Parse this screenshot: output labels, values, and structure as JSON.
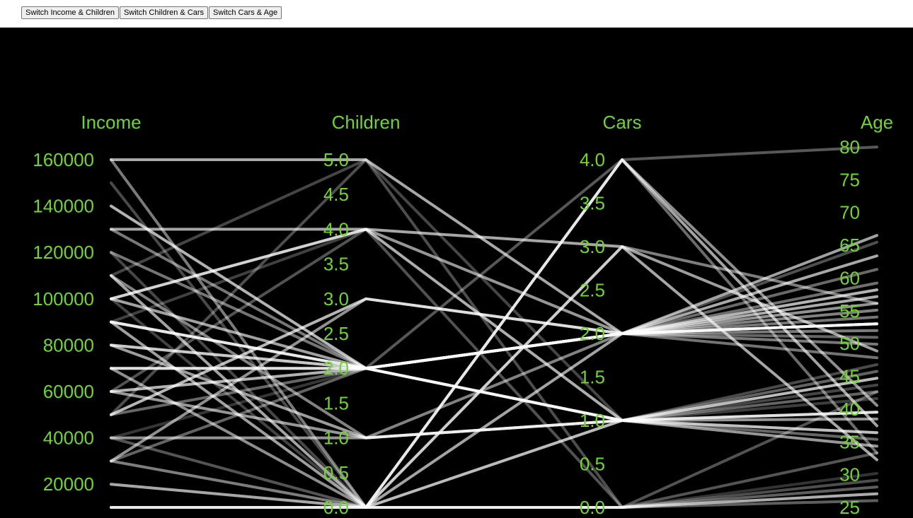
{
  "toolbar": {
    "swap_income_children": "Switch Income & Children",
    "swap_children_cars": "Switch Children & Cars",
    "swap_cars_age": "Switch Cars & Age"
  },
  "chart_data": {
    "type": "parallel-coordinates",
    "text_color": "#6ed62e",
    "background": "#000000",
    "line_color": "#ffffff",
    "axes": [
      {
        "key": "income",
        "label": "Income",
        "range": [
          10000,
          160000
        ],
        "ticks": [
          "20000",
          "40000",
          "60000",
          "80000",
          "100000",
          "120000",
          "140000",
          "160000"
        ],
        "tick_values": [
          20000,
          40000,
          60000,
          80000,
          100000,
          120000,
          140000,
          160000
        ]
      },
      {
        "key": "children",
        "label": "Children",
        "range": [
          0,
          5
        ],
        "ticks": [
          "0.0",
          "0.5",
          "1.0",
          "1.5",
          "2.0",
          "2.5",
          "3.0",
          "3.5",
          "4.0",
          "4.5",
          "5.0"
        ],
        "tick_values": [
          0,
          0.5,
          1,
          1.5,
          2,
          2.5,
          3,
          3.5,
          4,
          4.5,
          5
        ]
      },
      {
        "key": "cars",
        "label": "Cars",
        "range": [
          0,
          4
        ],
        "ticks": [
          "0.0",
          "0.5",
          "1.0",
          "1.5",
          "2.0",
          "2.5",
          "3.0",
          "3.5",
          "4.0"
        ],
        "tick_values": [
          0,
          0.5,
          1,
          1.5,
          2,
          2.5,
          3,
          3.5,
          4
        ]
      },
      {
        "key": "age",
        "label": "Age",
        "range": [
          25,
          78
        ],
        "ticks": [
          "25",
          "30",
          "35",
          "40",
          "45",
          "50",
          "55",
          "60",
          "65",
          "70",
          "75",
          "80"
        ],
        "tick_values": [
          25,
          30,
          35,
          40,
          45,
          50,
          55,
          60,
          65,
          70,
          75,
          80
        ]
      }
    ],
    "records": [
      [
        10000,
        0,
        0,
        26
      ],
      [
        10000,
        0,
        0,
        27
      ],
      [
        10000,
        0,
        0,
        28
      ],
      [
        10000,
        0,
        1,
        35
      ],
      [
        10000,
        0,
        4,
        40
      ],
      [
        20000,
        0,
        1,
        45
      ],
      [
        20000,
        0,
        0,
        30
      ],
      [
        30000,
        3,
        2,
        55
      ],
      [
        30000,
        2,
        1,
        42
      ],
      [
        40000,
        2,
        2,
        52
      ],
      [
        40000,
        1,
        1,
        38
      ],
      [
        50000,
        2,
        2,
        50
      ],
      [
        60000,
        2,
        1,
        36
      ],
      [
        60000,
        1,
        1,
        34
      ],
      [
        60000,
        2,
        2,
        60
      ],
      [
        70000,
        0,
        0,
        26
      ],
      [
        70000,
        2,
        2,
        52
      ],
      [
        70000,
        0,
        4,
        33
      ],
      [
        80000,
        2,
        1,
        41
      ],
      [
        80000,
        1,
        1,
        39
      ],
      [
        80000,
        2,
        2,
        58
      ],
      [
        90000,
        4,
        2,
        52
      ],
      [
        90000,
        0,
        3,
        48
      ],
      [
        90000,
        2,
        1,
        44
      ],
      [
        100000,
        0,
        1,
        35
      ],
      [
        100000,
        2,
        2,
        65
      ],
      [
        100000,
        4,
        2,
        47
      ],
      [
        110000,
        5,
        1,
        43
      ],
      [
        110000,
        0,
        4,
        37
      ],
      [
        120000,
        2,
        2,
        53
      ],
      [
        120000,
        0,
        0,
        27
      ],
      [
        130000,
        4,
        3,
        32
      ],
      [
        130000,
        2,
        2,
        49
      ],
      [
        150000,
        0,
        1,
        46
      ],
      [
        160000,
        5,
        2,
        62
      ],
      [
        160000,
        0,
        2,
        51
      ],
      [
        50000,
        5,
        0,
        29
      ],
      [
        90000,
        2,
        2,
        56
      ],
      [
        30000,
        0,
        3,
        55
      ],
      [
        20000,
        0,
        2,
        64
      ],
      [
        100000,
        4,
        1,
        36
      ],
      [
        80000,
        2,
        2,
        54
      ],
      [
        60000,
        4,
        0,
        42
      ],
      [
        70000,
        2,
        1,
        39
      ],
      [
        110000,
        1,
        2,
        52
      ],
      [
        40000,
        0,
        0,
        33
      ],
      [
        140000,
        2,
        2,
        57
      ],
      [
        90000,
        2,
        1,
        44
      ],
      [
        60000,
        2,
        4,
        78
      ],
      [
        50000,
        3,
        2,
        52
      ]
    ]
  }
}
